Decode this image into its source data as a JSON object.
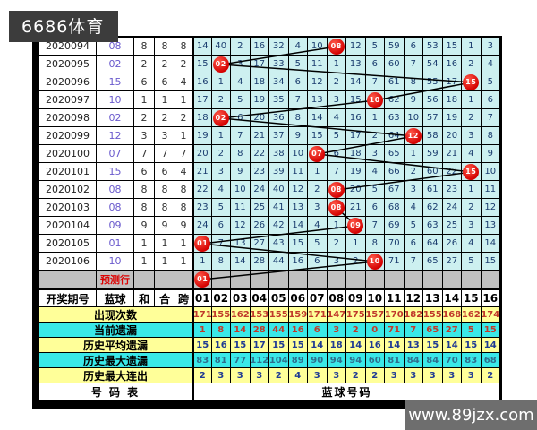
{
  "brand": "6686体育",
  "watermark": "www.89jzx.com",
  "chart_data": {
    "type": "table",
    "description_colors": {
      "hit_circle": "#d40000",
      "ball_area_bg": "#cdf0f0",
      "prediction_row_bg": "#c0c0c0",
      "stats_yellow_bg": "#ffff99",
      "stats_cyan_bg": "#3ae8e8",
      "blue_ball_text": "#6a5acd"
    },
    "header": {
      "period": "开奖期号",
      "blue": "蓝球",
      "sum": "和",
      "combo": "合",
      "span": "跨",
      "balls": [
        "01",
        "02",
        "03",
        "04",
        "05",
        "06",
        "07",
        "08",
        "09",
        "10",
        "11",
        "12",
        "13",
        "14",
        "15",
        "16"
      ]
    },
    "rows": [
      {
        "period": "2020094",
        "blue": "08",
        "sum": "8",
        "combo": "8",
        "span": "8",
        "hit": 8,
        "cells": [
          14,
          40,
          2,
          16,
          32,
          4,
          10,
          "08",
          12,
          5,
          59,
          6,
          53,
          15,
          1,
          3
        ]
      },
      {
        "period": "2020095",
        "blue": "02",
        "sum": "2",
        "combo": "2",
        "span": "2",
        "hit": 2,
        "cells": [
          15,
          "02",
          3,
          17,
          33,
          5,
          11,
          1,
          13,
          6,
          60,
          7,
          54,
          16,
          2,
          4
        ]
      },
      {
        "period": "2020096",
        "blue": "15",
        "sum": "6",
        "combo": "6",
        "span": "4",
        "hit": 15,
        "cells": [
          16,
          1,
          4,
          18,
          34,
          6,
          12,
          2,
          14,
          7,
          61,
          8,
          55,
          17,
          "15",
          5
        ]
      },
      {
        "period": "2020097",
        "blue": "10",
        "sum": "1",
        "combo": "1",
        "span": "1",
        "hit": 10,
        "cells": [
          17,
          2,
          5,
          19,
          35,
          7,
          13,
          3,
          15,
          "10",
          62,
          9,
          56,
          18,
          1,
          6
        ]
      },
      {
        "period": "2020098",
        "blue": "02",
        "sum": "2",
        "combo": "2",
        "span": "2",
        "hit": 2,
        "cells": [
          18,
          "02",
          6,
          20,
          36,
          8,
          14,
          4,
          16,
          1,
          63,
          10,
          57,
          19,
          2,
          7
        ]
      },
      {
        "period": "2020099",
        "blue": "12",
        "sum": "3",
        "combo": "3",
        "span": "1",
        "hit": 12,
        "cells": [
          19,
          1,
          7,
          21,
          37,
          9,
          15,
          5,
          17,
          2,
          64,
          "12",
          58,
          20,
          3,
          8
        ]
      },
      {
        "period": "2020100",
        "blue": "07",
        "sum": "7",
        "combo": "7",
        "span": "7",
        "hit": 7,
        "cells": [
          20,
          2,
          8,
          22,
          38,
          10,
          "07",
          6,
          18,
          3,
          65,
          1,
          59,
          21,
          4,
          9
        ]
      },
      {
        "period": "2020101",
        "blue": "15",
        "sum": "6",
        "combo": "6",
        "span": "4",
        "hit": 15,
        "cells": [
          21,
          3,
          9,
          23,
          39,
          11,
          1,
          7,
          19,
          4,
          66,
          2,
          60,
          22,
          "15",
          10
        ]
      },
      {
        "period": "2020102",
        "blue": "08",
        "sum": "8",
        "combo": "8",
        "span": "8",
        "hit": 8,
        "cells": [
          22,
          4,
          10,
          24,
          40,
          12,
          2,
          "08",
          20,
          5,
          67,
          3,
          61,
          23,
          1,
          11
        ]
      },
      {
        "period": "2020103",
        "blue": "08",
        "sum": "8",
        "combo": "8",
        "span": "8",
        "hit": 8,
        "cells": [
          23,
          5,
          11,
          25,
          41,
          13,
          3,
          "08",
          21,
          6,
          68,
          4,
          62,
          24,
          2,
          12
        ]
      },
      {
        "period": "2020104",
        "blue": "09",
        "sum": "9",
        "combo": "9",
        "span": "9",
        "hit": 9,
        "cells": [
          24,
          6,
          12,
          26,
          42,
          14,
          4,
          1,
          "09",
          7,
          69,
          5,
          63,
          25,
          3,
          13
        ]
      },
      {
        "period": "2020105",
        "blue": "01",
        "sum": "1",
        "combo": "1",
        "span": "1",
        "hit": 1,
        "cells": [
          "01",
          7,
          13,
          27,
          43,
          15,
          5,
          2,
          1,
          8,
          70,
          6,
          64,
          26,
          4,
          14
        ]
      },
      {
        "period": "2020106",
        "blue": "10",
        "sum": "1",
        "combo": "1",
        "span": "1",
        "hit": 10,
        "cells": [
          1,
          8,
          14,
          28,
          44,
          16,
          6,
          3,
          2,
          "10",
          71,
          7,
          65,
          27,
          5,
          15
        ]
      }
    ],
    "prediction": {
      "label": "预测行",
      "hit": 1,
      "hit_label": "01"
    },
    "stats": [
      {
        "label": "出现次数",
        "bg": "yellow",
        "value_color": "#c0392b",
        "values": [
          171,
          155,
          162,
          153,
          155,
          159,
          171,
          147,
          175,
          157,
          170,
          182,
          155,
          168,
          162,
          174
        ]
      },
      {
        "label": "当前遗漏",
        "bg": "cyan",
        "value_color": "#c0392b",
        "values": [
          1,
          8,
          14,
          28,
          44,
          16,
          6,
          3,
          2,
          0,
          71,
          7,
          65,
          27,
          5,
          15
        ]
      },
      {
        "label": "历史平均遗漏",
        "bg": "yellow",
        "value_color": "#1f3a93",
        "values": [
          15,
          16,
          15,
          17,
          15,
          15,
          14,
          18,
          14,
          16,
          14,
          13,
          15,
          14,
          15,
          14
        ]
      },
      {
        "label": "历史最大遗漏",
        "bg": "cyan",
        "value_color": "#2e6e8e",
        "values": [
          83,
          81,
          77,
          112,
          104,
          89,
          90,
          94,
          94,
          60,
          81,
          84,
          84,
          70,
          83,
          68
        ]
      },
      {
        "label": "历史最大连出",
        "bg": "yellow",
        "value_color": "#1f3a93",
        "values": [
          2,
          3,
          3,
          3,
          2,
          4,
          3,
          3,
          2,
          2,
          3,
          3,
          3,
          3,
          3,
          2
        ]
      }
    ],
    "footer": {
      "left": "号 码 表",
      "right": "蓝球号码"
    }
  }
}
